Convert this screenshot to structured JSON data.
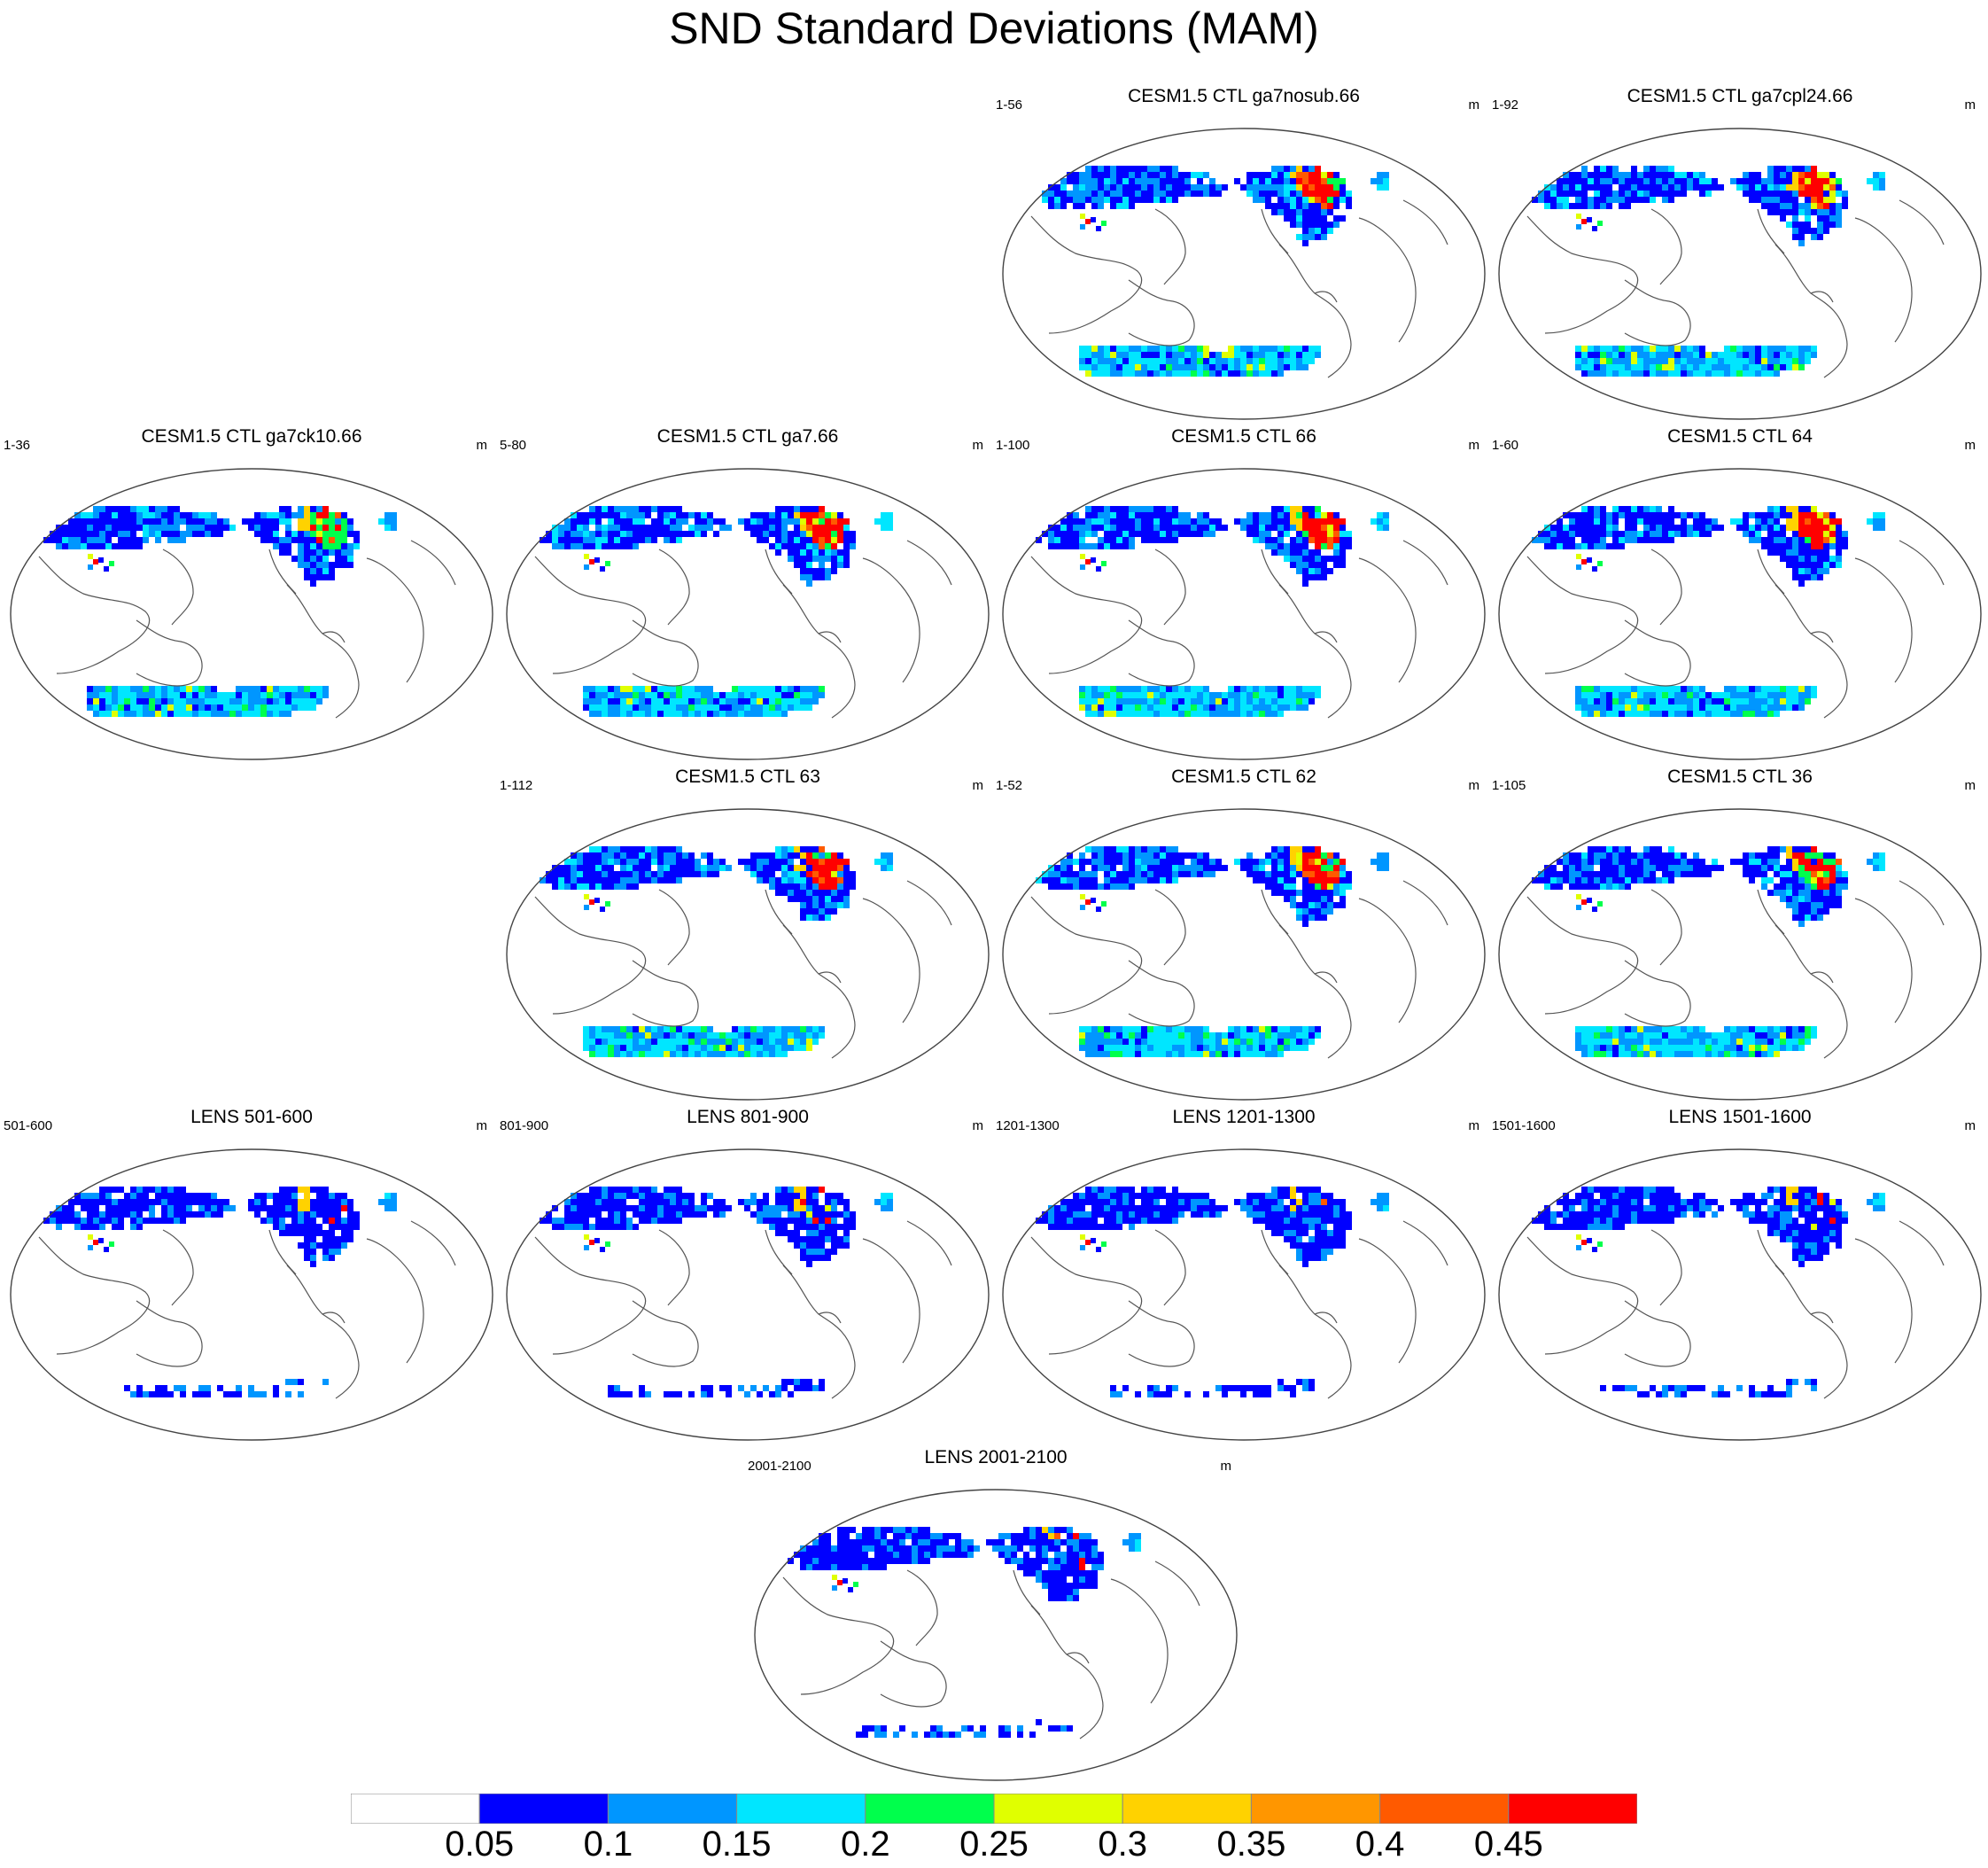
{
  "title": "SND Standard Deviations (MAM)",
  "panels": [
    {
      "title": "CESM1.5 CTL ga7nosub.66",
      "left": "1-56",
      "unit": "m",
      "pattern": "ctl",
      "hot": 0.9,
      "ant": "big"
    },
    {
      "title": "CESM1.5 CTL ga7cpl24.66",
      "left": "1-92",
      "unit": "m",
      "pattern": "ctl",
      "hot": 1.0,
      "ant": "big"
    },
    {
      "title": "CESM1.5 CTL ga7ck10.66",
      "left": "1-36",
      "unit": "m",
      "pattern": "ctl",
      "hot": 0.4,
      "ant": "big"
    },
    {
      "title": "CESM1.5 CTL ga7.66",
      "left": "5-80",
      "unit": "m",
      "pattern": "ctl",
      "hot": 0.9,
      "ant": "big"
    },
    {
      "title": "CESM1.5 CTL 66",
      "left": "1-100",
      "unit": "m",
      "pattern": "ctl",
      "hot": 1.0,
      "ant": "big"
    },
    {
      "title": "CESM1.5 CTL 64",
      "left": "1-60",
      "unit": "m",
      "pattern": "ctl",
      "hot": 1.0,
      "ant": "big"
    },
    {
      "title": "CESM1.5 CTL 63",
      "left": "1-112",
      "unit": "m",
      "pattern": "ctl",
      "hot": 0.9,
      "ant": "big"
    },
    {
      "title": "CESM1.5 CTL 62",
      "left": "1-52",
      "unit": "m",
      "pattern": "ctl",
      "hot": 0.9,
      "ant": "big"
    },
    {
      "title": "CESM1.5 CTL 36",
      "left": "1-105",
      "unit": "m",
      "pattern": "ctl",
      "hot": 0.6,
      "ant": "big"
    },
    {
      "title": "LENS 501-600",
      "left": "501-600",
      "unit": "m",
      "pattern": "lens",
      "hot": 0.1,
      "ant": "small"
    },
    {
      "title": "LENS 801-900",
      "left": "801-900",
      "unit": "m",
      "pattern": "lens",
      "hot": 0.1,
      "ant": "small"
    },
    {
      "title": "LENS 1201-1300",
      "left": "1201-1300",
      "unit": "m",
      "pattern": "lens",
      "hot": 0.1,
      "ant": "small"
    },
    {
      "title": "LENS 1501-1600",
      "left": "1501-1600",
      "unit": "m",
      "pattern": "lens",
      "hot": 0.1,
      "ant": "small"
    },
    {
      "title": "LENS 2001-2100",
      "left": "2001-2100",
      "unit": "m",
      "pattern": "lens",
      "hot": 0.1,
      "ant": "small"
    }
  ],
  "colorbar": {
    "colors": [
      "#ffffff",
      "#0000ff",
      "#0096ff",
      "#00e6ff",
      "#00ff4c",
      "#e0ff00",
      "#ffd200",
      "#ff9600",
      "#ff5a00",
      "#ff0000"
    ],
    "labels": [
      "0.05",
      "0.1",
      "0.15",
      "0.2",
      "0.25",
      "0.3",
      "0.35",
      "0.4",
      "0.45"
    ]
  }
}
